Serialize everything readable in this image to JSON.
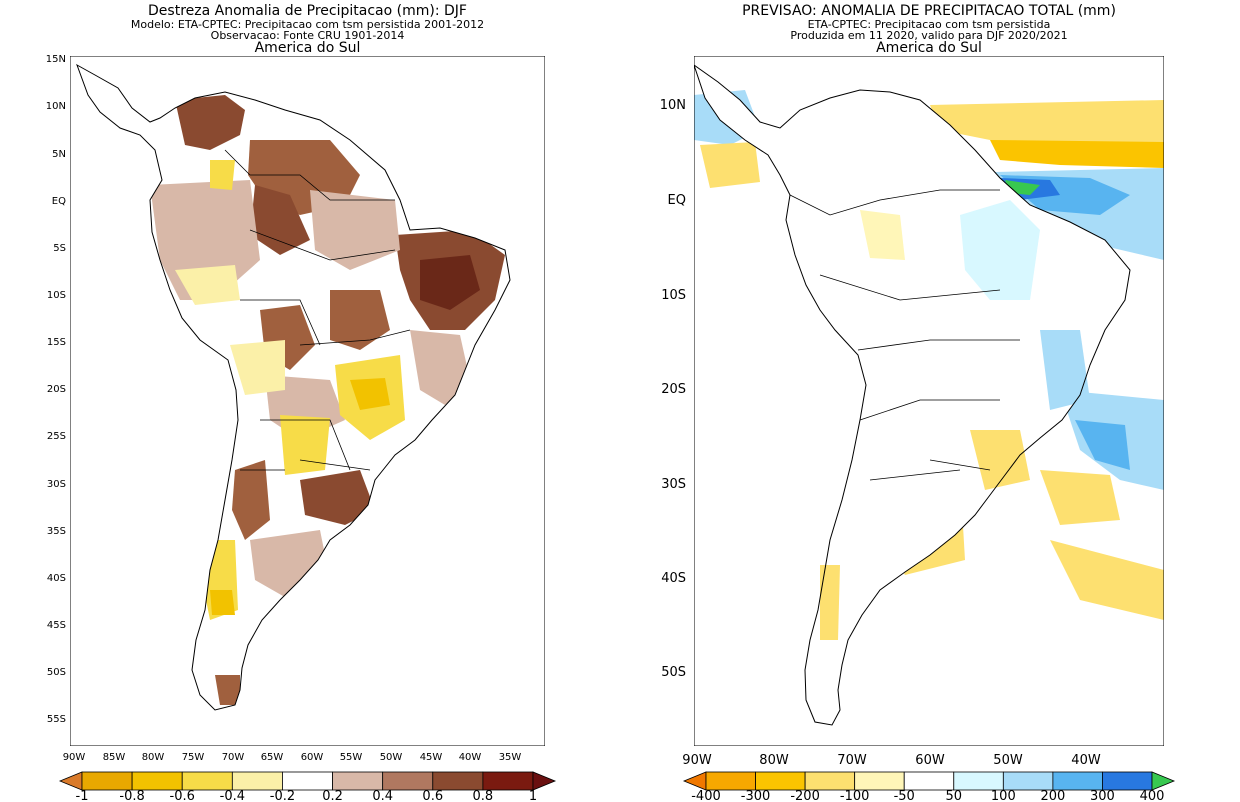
{
  "left_panel": {
    "title": "Destreza Anomalia de Precipitacao (mm): DJF",
    "subtitle1": "Modelo: ETA-CPTEC: Precipitacao com tsm persistida 2001-2012",
    "subtitle2": "Observacao: Fonte CRU 1901-2014",
    "region": "America do Sul",
    "lat_labels": [
      "15N",
      "10N",
      "5N",
      "EQ",
      "5S",
      "10S",
      "15S",
      "20S",
      "25S",
      "30S",
      "35S",
      "40S",
      "45S",
      "50S",
      "55S"
    ],
    "lon_labels": [
      "90W",
      "85W",
      "80W",
      "75W",
      "70W",
      "65W",
      "60W",
      "55W",
      "50W",
      "45W",
      "40W",
      "35W"
    ],
    "colorbar": {
      "labels": [
        "-1",
        "-0.8",
        "-0.6",
        "-0.4",
        "-0.2",
        "0.2",
        "0.4",
        "0.6",
        "0.8",
        "1"
      ],
      "colors": [
        "#d97a2a",
        "#e8a800",
        "#f2c200",
        "#f7dc48",
        "#fbf0a8",
        "#ffffff",
        "#d8b8a8",
        "#b07860",
        "#8a4a30",
        "#7a1a10",
        "#6a1010"
      ]
    }
  },
  "right_panel": {
    "title": "PREVISAO: ANOMALIA DE PRECIPITACAO TOTAL (mm)",
    "subtitle1": "ETA-CPTEC: Precipitacao com tsm persistida",
    "subtitle2": "Produzida em 11 2020, valido para DJF 2020/2021",
    "region": "America do Sul",
    "lat_labels": [
      "10N",
      "EQ",
      "10S",
      "20S",
      "30S",
      "40S",
      "50S"
    ],
    "lon_labels": [
      "90W",
      "80W",
      "70W",
      "60W",
      "50W",
      "40W"
    ],
    "colorbar": {
      "labels": [
        "-400",
        "-300",
        "-200",
        "-100",
        "-50",
        "50",
        "100",
        "200",
        "300",
        "400"
      ],
      "colors": [
        "#f07800",
        "#f7a800",
        "#fbc400",
        "#fde070",
        "#fff6b8",
        "#ffffff",
        "#d8f8ff",
        "#a8dcf8",
        "#58b4f0",
        "#2878e0",
        "#38c850"
      ]
    }
  }
}
